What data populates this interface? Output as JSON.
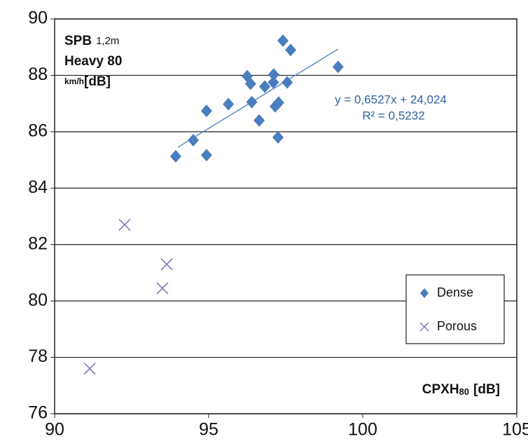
{
  "chart_data": {
    "type": "scatter",
    "ylabel": {
      "name": "SPB",
      "sub": "1,2m",
      "line2": "Heavy 80",
      "unit_sub": "km/h",
      "unit": "[dB]"
    },
    "xlabel": {
      "name": "CPXH",
      "sub": "80",
      "unit": "[dB]"
    },
    "xlim": [
      90,
      105
    ],
    "ylim": [
      76,
      90
    ],
    "xticks": [
      90,
      95,
      100,
      105
    ],
    "yticks": [
      76,
      78,
      80,
      82,
      84,
      86,
      88,
      90
    ],
    "grid": true,
    "legend": "lower right",
    "series": [
      {
        "name": "Dense",
        "color": "#4a7ebf",
        "marker": "diamond",
        "x": [
          93.93,
          94.5,
          94.93,
          94.93,
          95.64,
          96.25,
          96.36,
          96.4,
          96.64,
          96.82,
          97.11,
          97.1,
          97.16,
          97.27,
          97.25,
          97.41,
          97.55,
          97.66,
          99.2
        ],
        "values": [
          85.13,
          85.7,
          86.74,
          85.17,
          86.98,
          87.97,
          87.7,
          87.05,
          86.4,
          87.6,
          88.03,
          87.75,
          86.9,
          87.03,
          85.8,
          89.23,
          87.75,
          88.9,
          88.3
        ]
      },
      {
        "name": "Porous",
        "color": "#8a72b8",
        "marker": "x",
        "x": [
          92.27,
          93.64,
          93.5,
          91.14
        ],
        "values": [
          82.7,
          81.3,
          80.45,
          77.6
        ]
      }
    ],
    "trendline": {
      "color": "#4a7ebf",
      "x": [
        94.0,
        99.2
      ],
      "values": [
        85.45,
        88.93
      ],
      "equation": "y = 0,6527x + 24,024",
      "r2": "R² = 0,5232"
    }
  }
}
